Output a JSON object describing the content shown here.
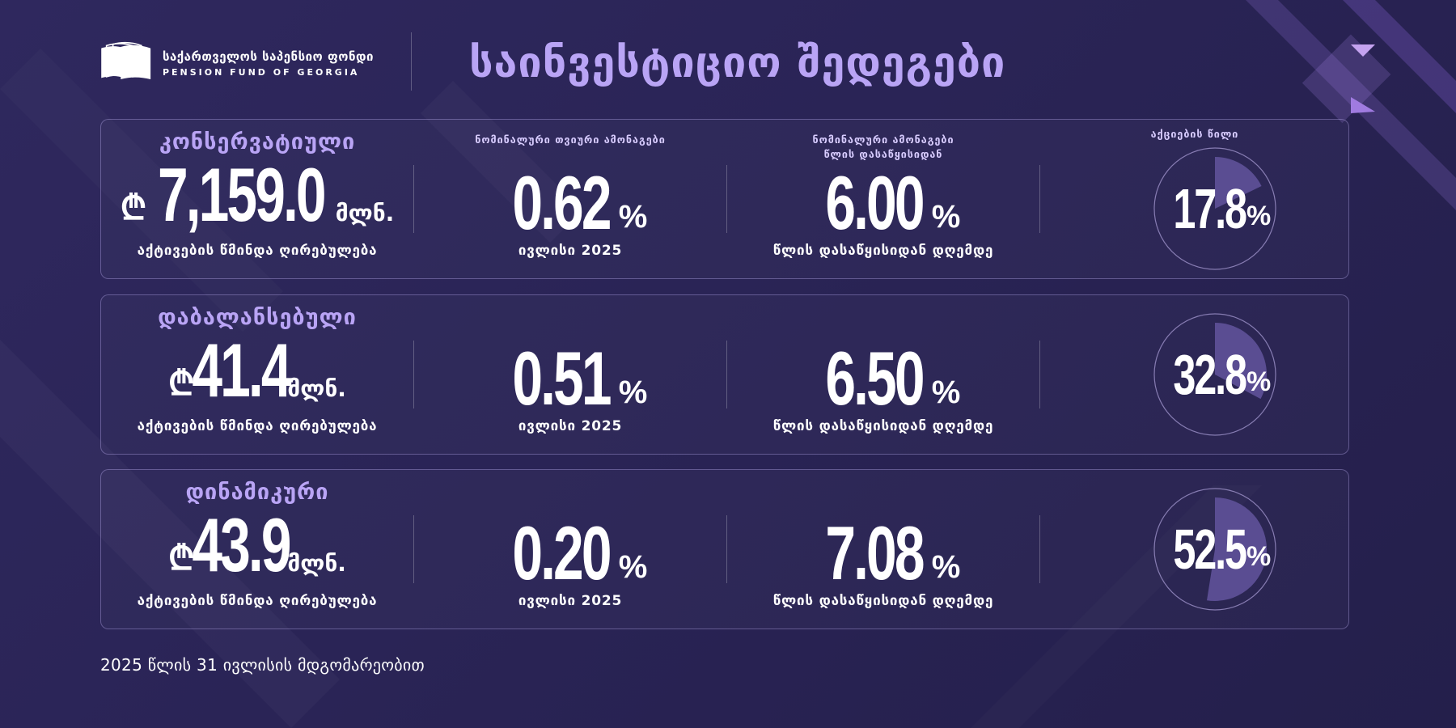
{
  "header": {
    "logo_ka": "საქართველოს საპენსიო ფონდი",
    "logo_en": "PENSION FUND OF GEORGIA",
    "title": "საინვესტიციო შედეგები"
  },
  "columns": {
    "monthly_head": "ნომინალური თვიური ამონაგები",
    "ytd_head_line1": "ნომინალური ამონაგები",
    "ytd_head_line2": "წლის დასაწყისიდან",
    "alloc_head": "აქციების წილი",
    "nav_label": "აქტივების წმინდა ღირებულება",
    "monthly_label": "ივლისი 2025",
    "ytd_label": "წლის დასაწყისიდან დღემდე"
  },
  "currency_symbol": "₾",
  "unit": "მლნ.",
  "percent_sign": "%",
  "funds": [
    {
      "name": "კონსერვატიული",
      "nav": "7,159.0",
      "monthly": "0.62",
      "ytd": "6.00",
      "equity": "17.8",
      "equity_value": 17.8
    },
    {
      "name": "დაბალანსებული",
      "nav": "41.4",
      "monthly": "0.51",
      "ytd": "6.50",
      "equity": "32.8",
      "equity_value": 32.8
    },
    {
      "name": "დინამიკური",
      "nav": "43.9",
      "monthly": "0.20",
      "ytd": "7.08",
      "equity": "52.5",
      "equity_value": 52.5
    }
  ],
  "footnote": "2025 წლის 31 ივლისის მდგომარეობით",
  "colors": {
    "accent": "#b9a4f5",
    "background": "#2a2456",
    "gauge_fill": "#5a4d92"
  }
}
